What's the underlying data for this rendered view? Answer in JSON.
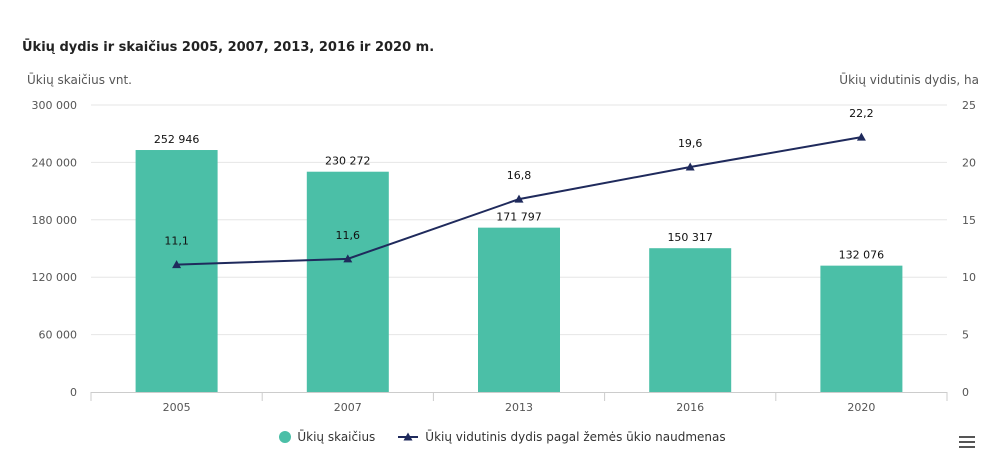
{
  "title": "Ūkių dydis ir skaičius 2005, 2007, 2013, 2016 ir 2020 m.",
  "left_axis_label": "Ūkių skaičius vnt.",
  "right_axis_label": "Ūkių vidutinis dydis, ha",
  "legend": [
    {
      "label": "Ūkių skaičius",
      "marker": "circle",
      "color": "#4bbfa7"
    },
    {
      "label": "Ūkių vidutinis dydis pagal žemės ūkio naudmenas",
      "marker": "triangle-line",
      "color": "#1f2a5c"
    }
  ],
  "menu_icon": "hamburger-menu-icon",
  "chart_data": {
    "type": "bar+line",
    "categories": [
      "2005",
      "2007",
      "2013",
      "2016",
      "2020"
    ],
    "series": [
      {
        "name": "Ūkių skaičius",
        "type": "bar",
        "axis": "left",
        "color": "#4bbfa7",
        "values": [
          252946,
          230272,
          171797,
          150317,
          132076
        ],
        "labels": [
          "252 946",
          "230 272",
          "171 797",
          "150 317",
          "132 076"
        ]
      },
      {
        "name": "Ūkių vidutinis dydis pagal žemės ūkio naudmenas",
        "type": "line",
        "axis": "right",
        "color": "#1f2a5c",
        "marker": "triangle",
        "values": [
          11.1,
          11.6,
          16.8,
          19.6,
          22.2
        ],
        "labels": [
          "11,1",
          "11,6",
          "16,8",
          "19,6",
          "22,2"
        ]
      }
    ],
    "y_left": {
      "min": 0,
      "max": 300000,
      "ticks": [
        0,
        60000,
        120000,
        180000,
        240000,
        300000
      ],
      "tick_labels": [
        "0",
        "60 000",
        "120 000",
        "180 000",
        "240 000",
        "300 000"
      ]
    },
    "y_right": {
      "min": 0,
      "max": 25,
      "ticks": [
        0,
        5,
        10,
        15,
        20,
        25
      ],
      "tick_labels": [
        "0",
        "5",
        "10",
        "15",
        "20",
        "25"
      ]
    },
    "grid": true,
    "legend_position": "bottom-center"
  }
}
